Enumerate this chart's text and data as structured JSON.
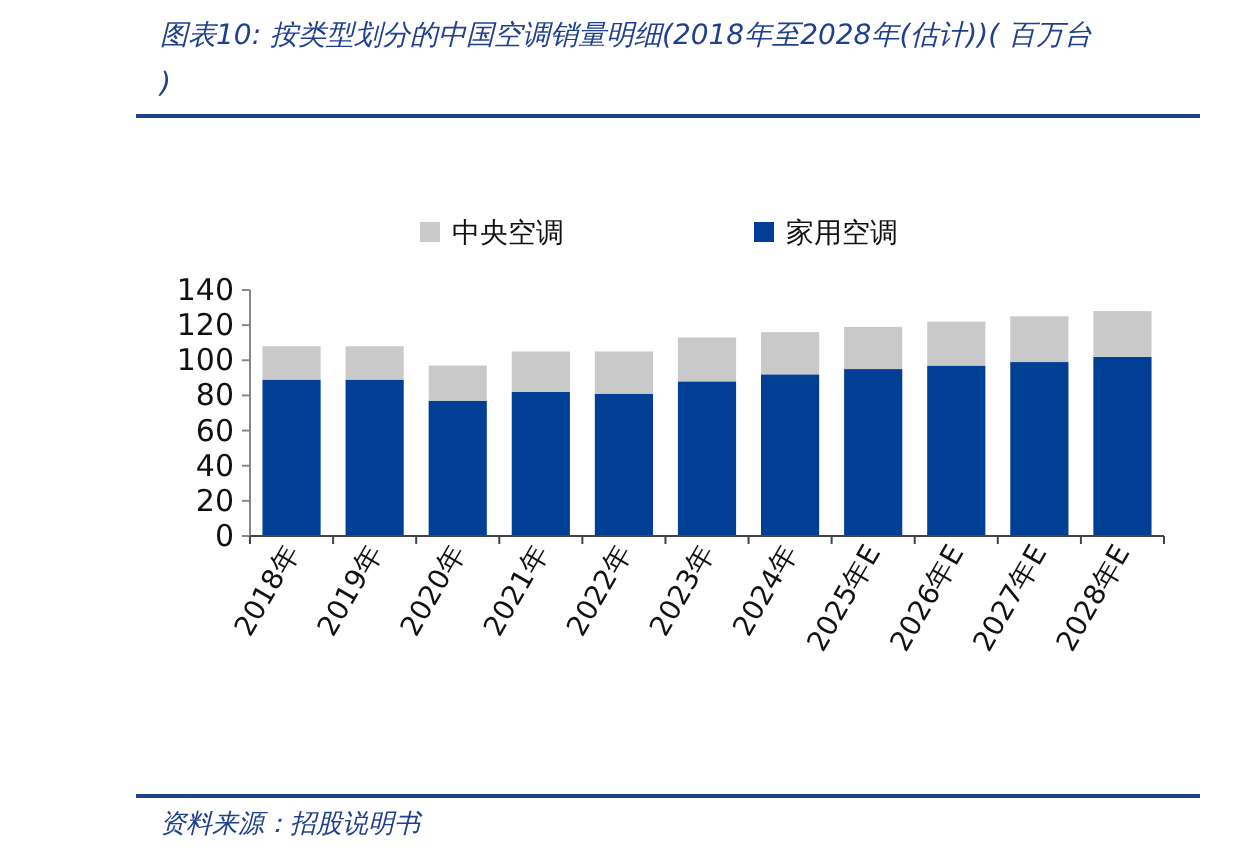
{
  "chart_data": {
    "type": "bar",
    "title": "图表10:  按类型划分的中国空调销量明细(2018年至2028年(估计))( 百万台 )",
    "stacked": true,
    "legend": "top",
    "grid": false,
    "categories": [
      "2018年",
      "2019年",
      "2020年",
      "2021年",
      "2022年",
      "2023年",
      "2024年",
      "2025年E",
      "2026年E",
      "2027年E",
      "2028年E"
    ],
    "series": [
      {
        "name": "家用空调",
        "color": "#003f94",
        "values": [
          89,
          89,
          77,
          82,
          81,
          88,
          92,
          95,
          97,
          99,
          102
        ]
      },
      {
        "name": "中央空调",
        "color": "#c9c9c9",
        "values": [
          19,
          19,
          20,
          23,
          24,
          25,
          24,
          24,
          25,
          26,
          26
        ]
      }
    ],
    "ylim": [
      0,
      140
    ],
    "yticks": [
      0,
      20,
      40,
      60,
      80,
      100,
      120,
      140
    ],
    "annotations": [
      "资料来源：招股说明书"
    ]
  }
}
